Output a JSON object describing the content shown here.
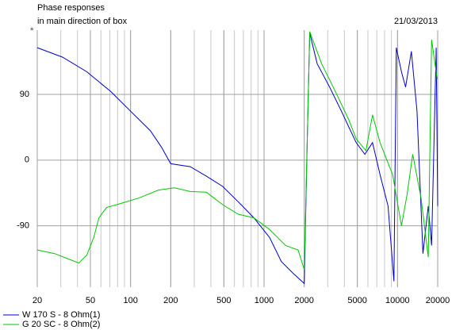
{
  "chart_data": {
    "type": "line",
    "title": "Phase responses",
    "subtitle": "in main direction of box",
    "date": "21/03/2013",
    "y_unit": "°",
    "log_x": true,
    "grid": true,
    "xlim": [
      20,
      20000
    ],
    "ylim": [
      -174,
      178
    ],
    "xticks": [
      20,
      50,
      100,
      200,
      500,
      1000,
      2000,
      5000,
      10000,
      20000
    ],
    "yticks": [
      90,
      0,
      -90
    ],
    "series": [
      {
        "name": "W 170 S - 8 Ohm(1)",
        "color": "#0000c8",
        "x": [
          20,
          31,
          47,
          71,
          100,
          141,
          170,
          200,
          280,
          370,
          490,
          640,
          840,
          1100,
          1350,
          1650,
          2000,
          2100,
          2200,
          2500,
          3100,
          3800,
          4300,
          4900,
          5700,
          6500,
          7400,
          8500,
          9400,
          9800,
          10700,
          11500,
          12700,
          14000,
          15500,
          17000,
          18000,
          19500,
          20000
        ],
        "values": [
          154,
          141,
          121,
          94,
          67,
          40,
          18,
          -5,
          -9,
          -22,
          -36,
          -57,
          -79,
          -106,
          -139,
          -155,
          -169,
          13,
          174,
          132,
          100,
          67,
          46,
          24,
          8,
          24,
          -20,
          -63,
          -166,
          154,
          121,
          100,
          149,
          67,
          -128,
          -63,
          -117,
          154,
          -63
        ]
      },
      {
        "name": "G 20 SC - 8 Ohm(2)",
        "color": "#00c800",
        "x": [
          20,
          27,
          36,
          41,
          47,
          53,
          58,
          66,
          82,
          115,
          162,
          213,
          280,
          370,
          490,
          640,
          840,
          1100,
          1450,
          1800,
          2000,
          2200,
          2700,
          3300,
          4300,
          4900,
          5800,
          6500,
          7400,
          9200,
          10700,
          11800,
          13000,
          15000,
          17000,
          18000,
          19800
        ],
        "values": [
          -123,
          -128,
          -137,
          -141,
          -130,
          -106,
          -79,
          -65,
          -60,
          -52,
          -41,
          -38,
          -43,
          -44,
          -61,
          -74,
          -79,
          -95,
          -117,
          -123,
          -150,
          176,
          132,
          100,
          56,
          29,
          13,
          62,
          24,
          -20,
          -90,
          -47,
          8,
          -52,
          -133,
          165,
          111
        ]
      }
    ]
  }
}
